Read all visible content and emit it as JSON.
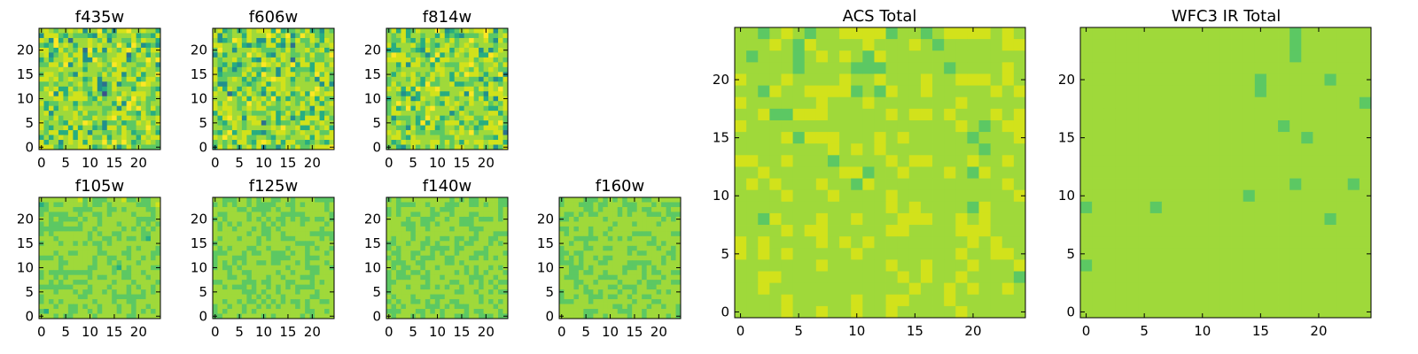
{
  "chart_data": [
    {
      "type": "heatmap",
      "title": "f435w",
      "xticks": [
        "0",
        "5",
        "10",
        "15",
        "20"
      ],
      "yticks": [
        "0",
        "5",
        "10",
        "15",
        "20"
      ],
      "grid_size": [
        25,
        25
      ],
      "xlim": [
        -0.5,
        24.5
      ],
      "ylim": [
        -0.5,
        24.5
      ],
      "colormap": "viridis",
      "grid": false,
      "values": [
        "7876778784779574889778775",
        "4888657666548756777856658",
        "8749573777876847766868775",
        "6569787577878776975974564",
        "8865867683958487689758688",
        "7846786884866677883687576",
        "5757788684497678884677979",
        "6688694786778769867766874",
        "7777877775777676887678776",
        "6887676487776868847685779",
        "8878678775684777868856886",
        "6676776786784368466689877",
        "6878558676684568777577765",
        "7794857887576267687888768",
        "7778868888658677976978667",
        "8566777576676775849867677",
        "7585787687777667479797686",
        "7847777868667678886658656",
        "7768677876687789688768778",
        "8677658779867466756687868",
        "8657785857756488686677976",
        "7688558587477667687566875",
        "5757878587866857787758788",
        "8577478785877969797567876",
        "8886577788756787468676666"
      ]
    },
    {
      "type": "heatmap",
      "title": "f606w",
      "xticks": [
        "0",
        "5",
        "10",
        "15",
        "20"
      ],
      "yticks": [
        "0",
        "5",
        "10",
        "15",
        "20"
      ],
      "grid_size": [
        25,
        25
      ],
      "xlim": [
        -0.5,
        24.5
      ],
      "ylim": [
        -0.5,
        24.5
      ],
      "colormap": "viridis",
      "grid": false,
      "values": [
        "7856756878885956676856476",
        "8476775877798679469786577",
        "7456986874485858686687587",
        "8877685465688547377675778",
        "6977477787666768677867857",
        "4757776978754787667686679",
        "7677867754878687378676677",
        "7657546787987867958858868",
        "8476467866567478566658877",
        "8566668685977478867769686",
        "8667875756789887577674886",
        "7447776567857787677777484",
        "6858757867588787787779767",
        "8773586876475878568598788",
        "7779768587869575766785866",
        "8687766978687678768687578",
        "8788767878866676778748877",
        "5878776766678568685657567",
        "7589784887768587465888586",
        "7657876788367566768867877",
        "7766876777778797785586785",
        "6579578855467887678778668",
        "8797878667765776777858788",
        "6767588658986858866567657",
        "5868757868466468686678889"
      ]
    },
    {
      "type": "heatmap",
      "title": "f814w",
      "xticks": [
        "0",
        "5",
        "10",
        "15",
        "20"
      ],
      "yticks": [
        "0",
        "5",
        "10",
        "15",
        "20"
      ],
      "grid_size": [
        25,
        25
      ],
      "xlim": [
        -0.5,
        24.5
      ],
      "ylim": [
        -0.5,
        24.5
      ],
      "colormap": "viridis",
      "grid": false,
      "values": [
        "6858568777974567878898476",
        "7678577677585654666796678",
        "7668657586776867797786486",
        "8577786576578767876777677",
        "5557765486788578788474687",
        "7988677646957687688559877",
        "8888868769588777786788676",
        "7758488675876668897677868",
        "7767777776887768768678766",
        "7578786768787586988757794",
        "6777687578677577766476458",
        "6867786596677855667758767",
        "8785859788977777886878797",
        "7764575778855778496648887",
        "5776845877678767786857488",
        "6797878767658787687786768",
        "6856958689777875777765578",
        "6887776687777468767778857",
        "7466675697856767886687776",
        "7687675958668885767558796",
        "7766486588567768675688875",
        "8786876676667878796777883",
        "7886587777766687777766587",
        "7568788778868675878878885",
        "6754686768667688776867468"
      ]
    },
    {
      "type": "heatmap",
      "title": "f105w",
      "xticks": [
        "0",
        "5",
        "10",
        "15",
        "20"
      ],
      "yticks": [
        "0",
        "5",
        "10",
        "15",
        "20"
      ],
      "grid_size": [
        25,
        25
      ],
      "xlim": [
        -0.5,
        24.5
      ],
      "ylim": [
        -0.5,
        24.5
      ],
      "colormap": "viridis",
      "grid": false,
      "values": [
        "7777777786766677786676677",
        "5676677776766767777766678",
        "6677777666677766767777667",
        "6766667767766767777677767",
        "7767666676776777777766667",
        "6766677767776777677767676",
        "6666666667767777767676767",
        "6767777777676776677776677",
        "7776777777677667676676577",
        "6777677676766767777777777",
        "7777777777776777776767776",
        "7776776677776677766777766",
        "6667677777767766776776767",
        "7777667777767767677767777",
        "7777677777667776576777766",
        "6766666666677776766776777",
        "6776767777676677766777677",
        "7767677666777776777677776",
        "6666666777677767776767767",
        "7776777676677676776776767",
        "6777777766777776666666777",
        "6767677777767776776677777",
        "7776776676776777677677677",
        "6577776677676777677676767",
        "7776766777767777776677777"
      ]
    },
    {
      "type": "heatmap",
      "title": "f125w",
      "xticks": [
        "0",
        "5",
        "10",
        "15",
        "20"
      ],
      "yticks": [
        "0",
        "5",
        "10",
        "15",
        "20"
      ],
      "grid_size": [
        25,
        25
      ],
      "xlim": [
        -0.5,
        24.5
      ],
      "ylim": [
        -0.5,
        24.5
      ],
      "colormap": "viridis",
      "grid": false,
      "values": [
        "7766677676776677677776666",
        "6767677676666776676777767",
        "7777766766667677677777767",
        "7667777677677766666777776",
        "6767777676767667676676676",
        "7676767777676767776777767",
        "7677677767667677777777677",
        "7777777677667767777766666",
        "7677767776767766677777676",
        "6777777776777777766667777",
        "7676777667767776777676776",
        "6667776766776667677677767",
        "6777666777776666777666777",
        "6767676776676677767677767",
        "6766767777777776777666776",
        "7776776677777677677766777",
        "7776677677767767776667777",
        "6677776667667776677767677",
        "7767666767767676766667777",
        "7777776667677677767776777",
        "7777777676767767777766777",
        "7767767667676767667677667",
        "6776776776767677767677777",
        "6767776767777777777667767",
        "6677767777676777776767777"
      ]
    },
    {
      "type": "heatmap",
      "title": "f140w",
      "xticks": [
        "0",
        "5",
        "10",
        "15",
        "20"
      ],
      "yticks": [
        "0",
        "5",
        "10",
        "15",
        "20"
      ],
      "grid_size": [
        25,
        25
      ],
      "xlim": [
        -0.5,
        24.5
      ],
      "ylim": [
        -0.5,
        24.5
      ],
      "colormap": "viridis",
      "grid": false,
      "values": [
        "6767777777777676766777766",
        "7766667767776667766767766",
        "6767777776766677777777767",
        "6767766776677677766777767",
        "7777677666776776667666767",
        "7776667667677776667777777",
        "7777667767777677766677777",
        "7777767777777777776777666",
        "7677767767766766766776677",
        "6677677667677767667776767",
        "6767777676666766777767777",
        "7667766776767767776667776",
        "6767767666776677766767677",
        "7666776677776676777777777",
        "7676677677677777676776767",
        "6766766767777767676767776",
        "6766677667767777766677677",
        "6677777767777667767676766",
        "6777677667676776777677677",
        "6777777777777766776776766",
        "7677767776667777777677777",
        "6767766767677667777676767",
        "7676777766676766677777677",
        "6667776676767777676677767",
        "7677767677767766677666766"
      ]
    },
    {
      "type": "heatmap",
      "title": "f160w",
      "xticks": [
        "0",
        "5",
        "10",
        "15",
        "20"
      ],
      "yticks": [
        "0",
        "5",
        "10",
        "15",
        "20"
      ],
      "grid_size": [
        25,
        25
      ],
      "xlim": [
        -0.5,
        24.5
      ],
      "ylim": [
        -0.5,
        24.5
      ],
      "colormap": "viridis",
      "grid": false,
      "values": [
        "6777766676767677766777777",
        "6777666766777666777676666",
        "7777766767776766766777677",
        "7667676677776767776667666",
        "6676777776777777777776767",
        "7777777777767776777767777",
        "6676776777677777777777777",
        "7677776776777776666777766",
        "7776666677676767777677777",
        "7767767777777777776676777",
        "6777766776677766777767767",
        "6676677777777767667777667",
        "6767677676677777777776767",
        "6667677766777766666776777",
        "7766676777777666767677777",
        "7766766776777677767667766",
        "7666777766667777767776777",
        "7776677677776777676667766",
        "7776767777667666776677777",
        "6777766767776776777767677",
        "6776776667667767766777777",
        "6667776777777776777667777",
        "7777777777766767776776776",
        "7777766677776667767777776",
        "7777766776777767767777676"
      ]
    },
    {
      "type": "heatmap",
      "title": "ACS Total",
      "xticks": [
        "0",
        "5",
        "10",
        "15",
        "20"
      ],
      "yticks": [
        "0",
        "5",
        "10",
        "15",
        "20"
      ],
      "grid_size": [
        25,
        25
      ],
      "xlim": [
        -0.5,
        24.5
      ],
      "ylim": [
        -0.5,
        24.5
      ],
      "colormap": "viridis",
      "grid": false,
      "values": [
        "7767876778888677678888787",
        "7778768777787778767777788",
        "7677767878768777777777777",
        "7777767777666777776777787",
        "8777877778778777877888787",
        "7768778888676877877777878",
        "8777777877787777777877777",
        "7786688877777878878777878",
        "8777777777777777777876788",
        "7777868887778787777767778",
        "7777777787878777777776777",
        "8877877767777878877787787",
        "7787777778867787778768777",
        "7878777877687777777777787",
        "7777877787777877777777778",
        "7777777777777878777768777",
        "7768777877877788877878777",
        "7777878877777887777888777",
        "8787777878787777777787877",
        "8787877777877777777877887",
        "7777777877777877877787778",
        "7788777777777787877877776",
        "7787777777777778778787787",
        "7777877777877887778777777",
        "7777877877877877777877777"
      ]
    },
    {
      "type": "heatmap",
      "title": "WFC3 IR Total",
      "xticks": [
        "0",
        "5",
        "10",
        "15",
        "20"
      ],
      "yticks": [
        "0",
        "5",
        "10",
        "15",
        "20"
      ],
      "grid_size": [
        25,
        25
      ],
      "xlim": [
        -0.5,
        24.5
      ],
      "ylim": [
        -0.5,
        24.5
      ],
      "colormap": "viridis",
      "grid": false,
      "values": [
        "7777777777777777776777777",
        "7777777777777777776777777",
        "7777777777777777776777777",
        "7777777777777777777777777",
        "7777777777777776777776777",
        "7777777777777776777777777",
        "7777777777777777777777776",
        "7777777777777777777777777",
        "7777777777777777767777777",
        "7777777777777777777677777",
        "7777777777777777777777777",
        "7777777777777777777777777",
        "7777777777777777777777777",
        "7777777777777777776777767",
        "7777777777777767777777777",
        "6777776777777777777777777",
        "7777777777777777777776777",
        "7777777777777777777777777",
        "7777777777777777777777777",
        "7777777777777777777777777",
        "6777777777777777777777777",
        "7777777777777777777777777",
        "7777777777777777777777777",
        "7777777777777777777777777",
        "7777777777777777777777777"
      ]
    }
  ]
}
